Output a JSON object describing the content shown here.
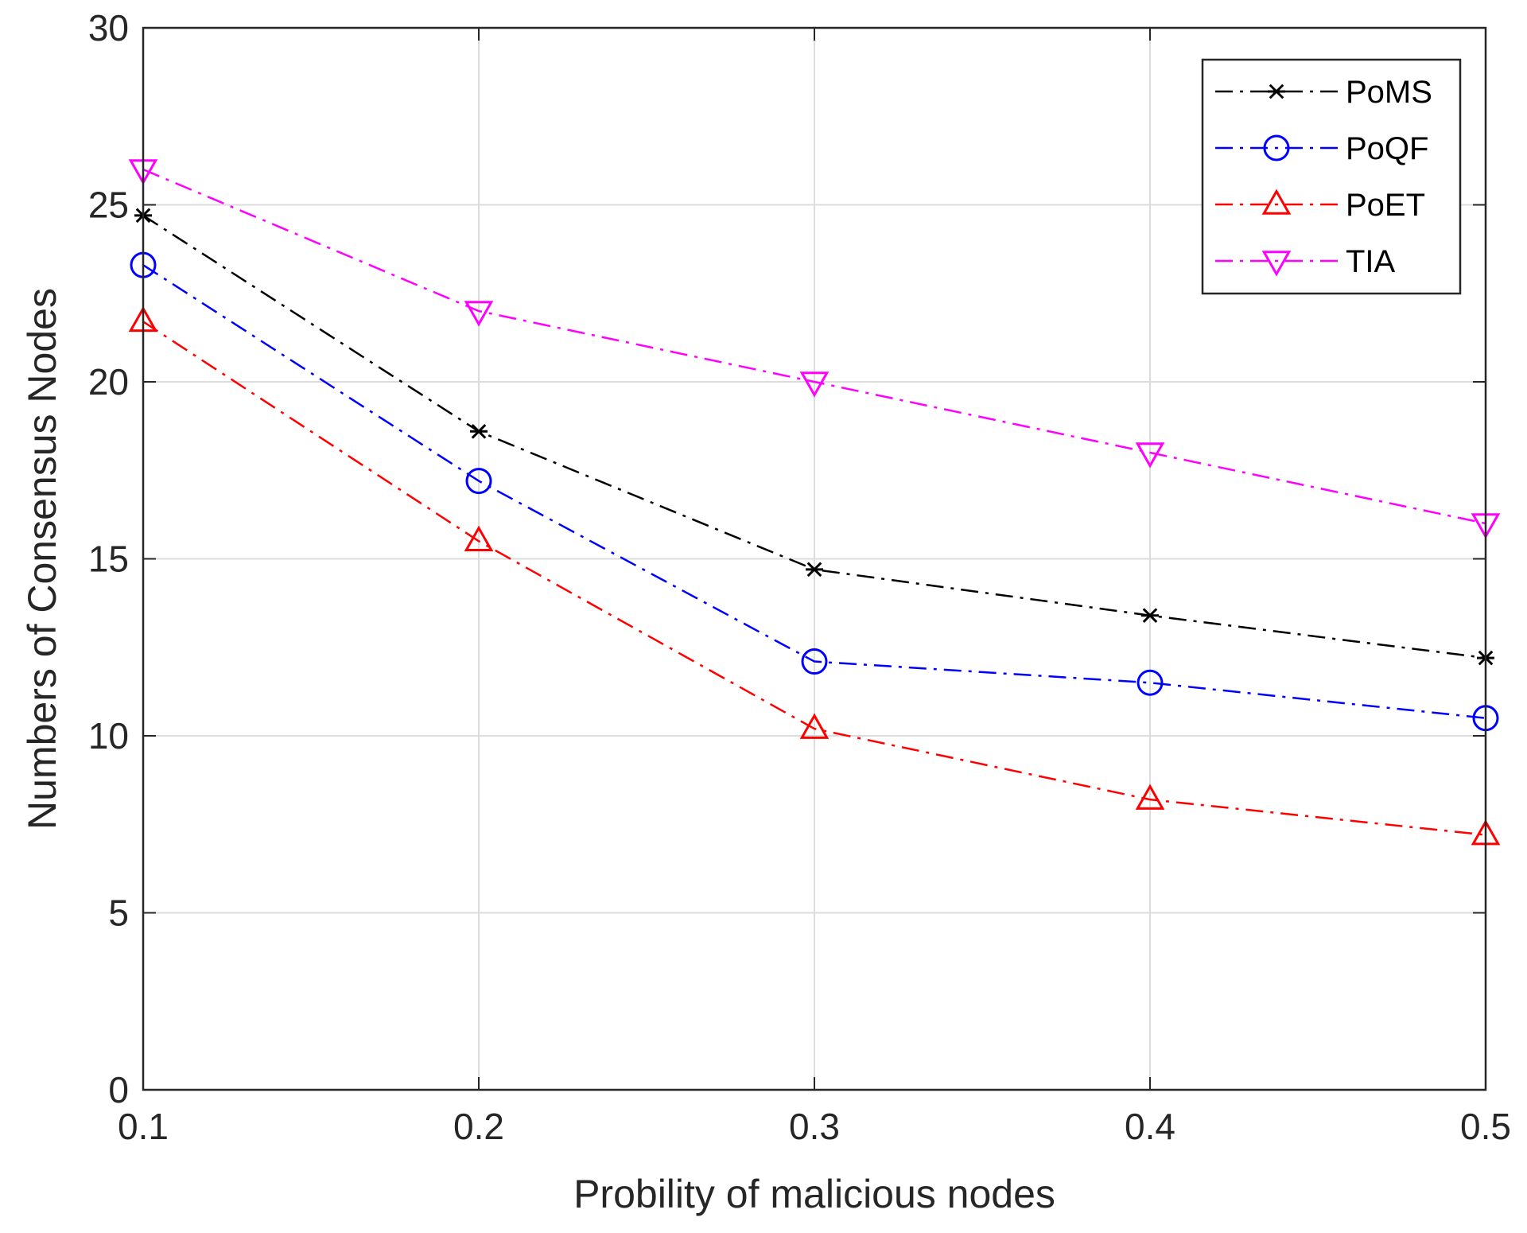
{
  "chart_data": {
    "type": "line",
    "title": "",
    "xlabel": "Probility of malicious nodes",
    "ylabel": "Numbers of Consensus Nodes",
    "x": [
      0.1,
      0.2,
      0.3,
      0.4,
      0.5
    ],
    "xlim": [
      0.1,
      0.5
    ],
    "ylim": [
      0,
      30
    ],
    "xticks": [
      0.1,
      0.2,
      0.3,
      0.4,
      0.5
    ],
    "xtick_labels": [
      "0.1",
      "0.2",
      "0.3",
      "0.4",
      "0.5"
    ],
    "yticks": [
      0,
      5,
      10,
      15,
      20,
      25,
      30
    ],
    "ytick_labels": [
      "0",
      "5",
      "10",
      "15",
      "20",
      "25",
      "30"
    ],
    "grid": true,
    "legend_position": "top-right",
    "series": [
      {
        "name": "PoMS",
        "values": [
          24.7,
          18.6,
          14.7,
          13.4,
          12.2
        ],
        "color": "#000000",
        "marker": "asterisk"
      },
      {
        "name": "PoQF",
        "values": [
          23.3,
          17.2,
          12.1,
          11.5,
          10.5
        ],
        "color": "#0000ff",
        "marker": "circle"
      },
      {
        "name": "PoET",
        "values": [
          21.7,
          15.5,
          10.2,
          8.2,
          7.2
        ],
        "color": "#ff0000",
        "marker": "triangle-up"
      },
      {
        "name": "TIA",
        "values": [
          26.0,
          22.0,
          20.0,
          18.0,
          16.0
        ],
        "color": "#ff00ff",
        "marker": "triangle-down"
      }
    ]
  }
}
